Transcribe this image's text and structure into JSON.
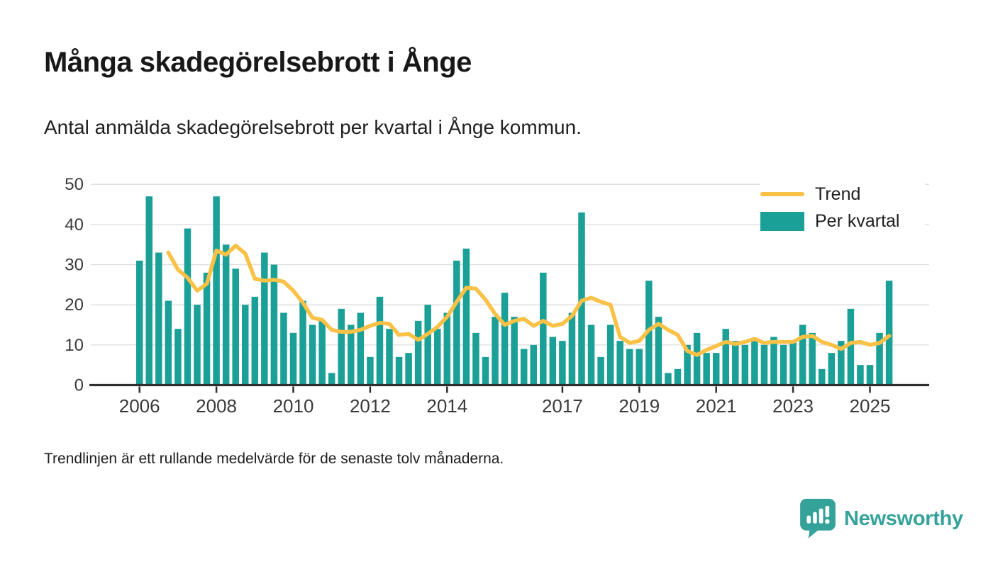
{
  "header": {
    "title": "Många skadegörelsebrott i Ånge",
    "subtitle": "Antal anmälda skadegörelsebrott per kvartal i Ånge kommun."
  },
  "legend": {
    "trend_label": "Trend",
    "bars_label": "Per kvartal"
  },
  "footnote": {
    "text": "Trendlinjen är ett rullande medelvärde för de senaste tolv månaderna."
  },
  "branding": {
    "logo_text": "Newsworthy",
    "logo_icon": "speech-bubble-bar-chart-exclamation"
  },
  "colors": {
    "bar": "#1AA096",
    "trend": "#F9C145",
    "logo": "#35A29A",
    "axis_text": "#3A3A3A",
    "gridline": "#DCDCDC",
    "axis_line": "#2E2E2E"
  },
  "chart_data": {
    "type": "bar",
    "title": "Många skadegörelsebrott i Ånge",
    "subtitle": "Antal anmälda skadegörelsebrott per kvartal i Ånge kommun.",
    "xlabel": "",
    "ylabel": "",
    "ylim": [
      0,
      50
    ],
    "grid": "horizontal",
    "legend_position": "top-right-inside",
    "x_start": "2006-Q1",
    "x_end": "2025-Q3",
    "x_frequency": "quarterly",
    "values": [
      31,
      47,
      33,
      21,
      14,
      39,
      20,
      28,
      47,
      35,
      29,
      20,
      22,
      33,
      30,
      18,
      13,
      21,
      15,
      16,
      3,
      19,
      15,
      18,
      7,
      22,
      14,
      7,
      8,
      16,
      20,
      14,
      18,
      31,
      34,
      13,
      7,
      17,
      23,
      17,
      9,
      10,
      28,
      12,
      11,
      18,
      43,
      15,
      7,
      15,
      11,
      9,
      9,
      26,
      17,
      3,
      4,
      10,
      13,
      8,
      8,
      14,
      11,
      10,
      11,
      10,
      12,
      10,
      11,
      15,
      13,
      4,
      8,
      11,
      19,
      5,
      5,
      13,
      26
    ],
    "series_name": "Per kvartal",
    "trend_series_name": "Trend",
    "trend_window_quarters": 4,
    "trend_note": "rolling mean of current + previous 3 quarters, drawn from 2006-Q4",
    "y_ticks": [
      0,
      10,
      20,
      30,
      40,
      50
    ],
    "x_ticks": [
      {
        "label": "2006",
        "quarter_index": 0
      },
      {
        "label": "2008",
        "quarter_index": 8
      },
      {
        "label": "2010",
        "quarter_index": 16
      },
      {
        "label": "2012",
        "quarter_index": 24
      },
      {
        "label": "2014",
        "quarter_index": 32
      },
      {
        "label": "2017",
        "quarter_index": 44
      },
      {
        "label": "2019",
        "quarter_index": 52
      },
      {
        "label": "2021",
        "quarter_index": 60
      },
      {
        "label": "2023",
        "quarter_index": 68
      },
      {
        "label": "2025",
        "quarter_index": 76
      }
    ]
  }
}
